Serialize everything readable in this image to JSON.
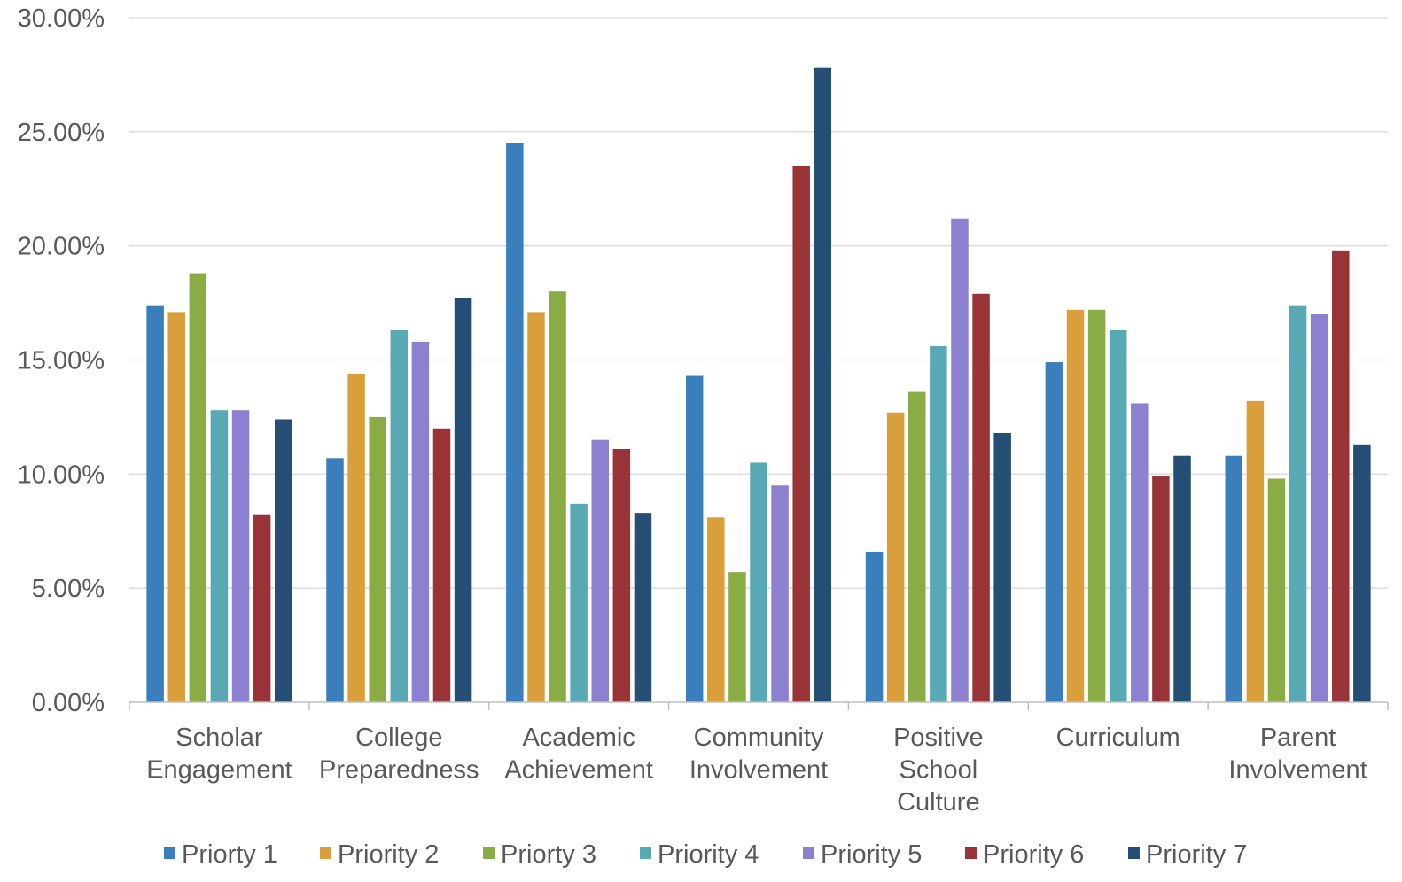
{
  "chart_data": {
    "type": "bar",
    "title": "",
    "xlabel": "",
    "ylabel": "",
    "ylim": [
      0,
      0.3
    ],
    "y_ticks": [
      0,
      0.05,
      0.1,
      0.15,
      0.2,
      0.25,
      0.3
    ],
    "y_tick_labels": [
      "0.00%",
      "5.00%",
      "10.00%",
      "15.00%",
      "20.00%",
      "25.00%",
      "30.00%"
    ],
    "grid": true,
    "legend_position": "bottom",
    "categories": [
      [
        "Scholar",
        "Engagement"
      ],
      [
        "College",
        "Preparedness"
      ],
      [
        "Academic",
        "Achievement"
      ],
      [
        "Community",
        "Involvement"
      ],
      [
        "Positive",
        "School",
        "Culture"
      ],
      [
        "Curriculum"
      ],
      [
        "Parent",
        "Involvement"
      ]
    ],
    "series": [
      {
        "name": "Priorty 1",
        "color": "#3A7FBC",
        "values": [
          0.174,
          0.107,
          0.245,
          0.143,
          0.066,
          0.149,
          0.108
        ]
      },
      {
        "name": "Priority 2",
        "color": "#DA9F3A",
        "values": [
          0.171,
          0.144,
          0.171,
          0.081,
          0.127,
          0.172,
          0.132
        ]
      },
      {
        "name": "Priorty 3",
        "color": "#8AAC45",
        "values": [
          0.188,
          0.125,
          0.18,
          0.057,
          0.136,
          0.172,
          0.098
        ]
      },
      {
        "name": "Priority 4",
        "color": "#59A9B4",
        "values": [
          0.128,
          0.163,
          0.087,
          0.105,
          0.156,
          0.163,
          0.174
        ]
      },
      {
        "name": "Priority 5",
        "color": "#8C80D1",
        "values": [
          0.128,
          0.158,
          0.115,
          0.095,
          0.212,
          0.131,
          0.17
        ]
      },
      {
        "name": "Priority 6",
        "color": "#983337",
        "values": [
          0.082,
          0.12,
          0.111,
          0.235,
          0.179,
          0.099,
          0.198
        ]
      },
      {
        "name": "Priority 7",
        "color": "#244E73",
        "values": [
          0.124,
          0.177,
          0.083,
          0.278,
          0.118,
          0.108,
          0.113
        ]
      }
    ],
    "colors": {
      "gridline": "#D9D9D9",
      "axis": "#BFBFBF",
      "label": "#595959"
    }
  }
}
